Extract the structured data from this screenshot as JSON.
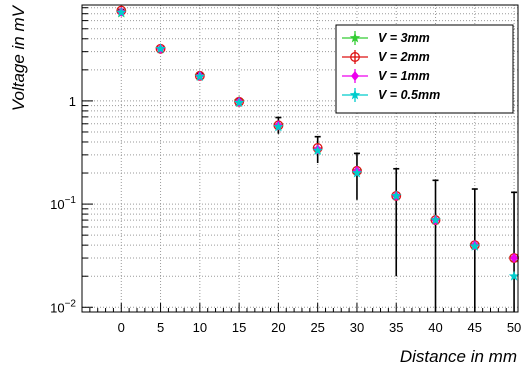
{
  "chart_data": {
    "type": "scatter",
    "xlabel": "Distance in mm",
    "ylabel": "Voltage in mV",
    "xlim": [
      -5,
      50.5
    ],
    "ylim": [
      0.009,
      8.5
    ],
    "y_scale": "log",
    "grid": true,
    "legend_position": "top-right",
    "x_ticks": [
      0,
      5,
      10,
      15,
      20,
      25,
      30,
      35,
      40,
      45,
      50
    ],
    "x_tick_labels": [
      "0",
      "5",
      "10",
      "15",
      "20",
      "25",
      "30",
      "35",
      "40",
      "45",
      "50"
    ],
    "y_ticks": [
      0.01,
      0.1,
      1
    ],
    "x": [
      0,
      5,
      10,
      15,
      20,
      25,
      30,
      35,
      40,
      45,
      50
    ],
    "series": [
      {
        "name": "V = 3mm",
        "color": "#33cc33",
        "marker": "star",
        "values": [
          7.1,
          3.2,
          1.75,
          1.0,
          0.58,
          0.34,
          0.21,
          0.12,
          0.07,
          0.04,
          0.03
        ]
      },
      {
        "name": "V = 2mm",
        "color": "#dd1111",
        "marker": "open-circle-cross",
        "values": [
          7.5,
          3.2,
          1.75,
          0.98,
          0.58,
          0.35,
          0.21,
          0.12,
          0.07,
          0.04,
          0.03
        ]
      },
      {
        "name": "V = 1mm",
        "color": "#ee00ee",
        "marker": "diamond",
        "values": [
          7.3,
          3.2,
          1.75,
          0.98,
          0.58,
          0.34,
          0.21,
          0.12,
          0.07,
          0.04,
          0.03
        ]
      },
      {
        "name": "V = 0.5mm",
        "color": "#00cccc",
        "marker": "star",
        "values": [
          7.2,
          3.2,
          1.72,
          0.96,
          0.56,
          0.33,
          0.2,
          0.12,
          0.07,
          0.039,
          0.02
        ]
      }
    ],
    "error_bars": {
      "color": "#000000",
      "lower": [
        7.0,
        3.1,
        1.68,
        0.93,
        0.48,
        0.25,
        0.11,
        0.02,
        0.0001,
        0.0001,
        0.0001
      ],
      "upper": [
        7.7,
        3.3,
        1.85,
        1.05,
        0.69,
        0.45,
        0.31,
        0.22,
        0.17,
        0.14,
        0.13
      ]
    }
  }
}
